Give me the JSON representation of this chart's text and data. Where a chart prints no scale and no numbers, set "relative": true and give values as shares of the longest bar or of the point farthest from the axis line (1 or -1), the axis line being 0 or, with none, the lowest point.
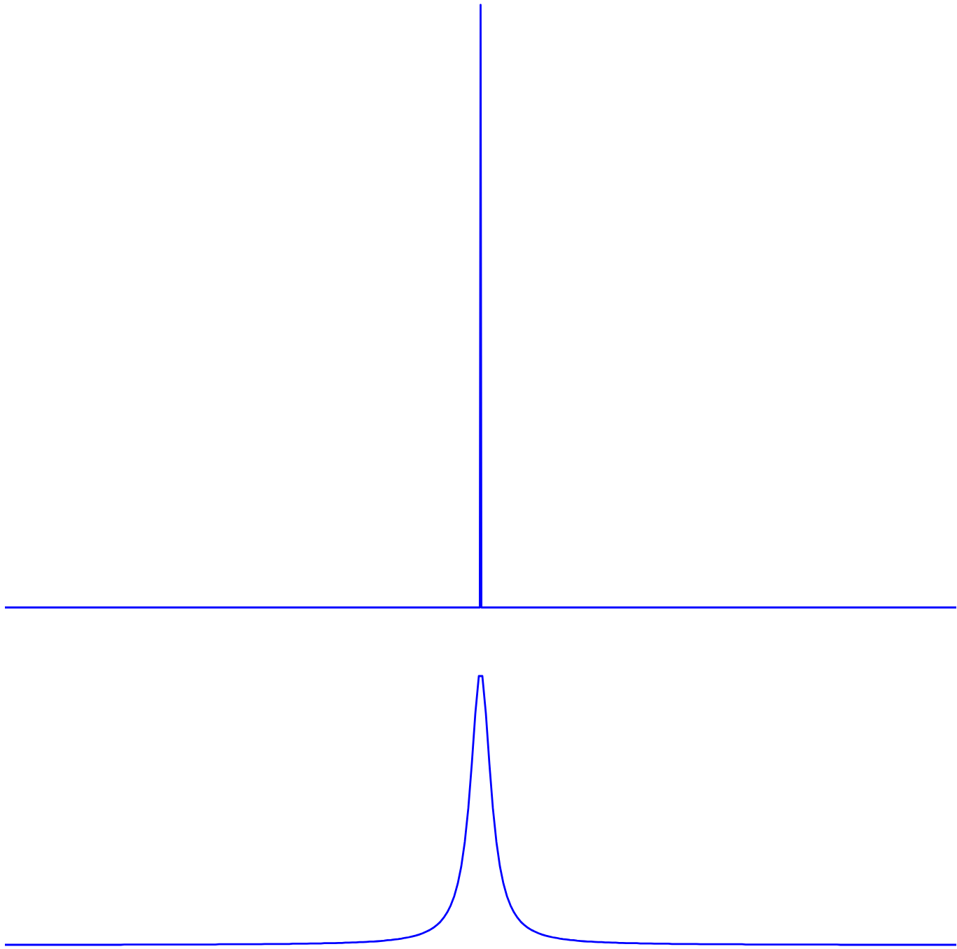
{
  "chart_data": [
    {
      "type": "line",
      "relative": true,
      "color": "#0000ff",
      "categories": [
        null,
        null,
        null,
        null,
        null,
        null,
        null,
        null,
        null,
        null,
        null,
        null,
        null,
        null,
        null,
        null,
        null,
        null,
        null,
        null,
        null,
        null,
        null,
        null,
        null,
        null,
        null,
        null,
        null,
        null,
        null,
        null,
        null,
        null,
        null,
        null,
        null,
        null,
        null,
        null,
        null,
        null,
        null,
        null,
        null,
        null,
        null,
        null,
        null,
        null,
        null,
        null,
        null,
        null,
        null,
        null,
        null,
        null,
        null,
        null,
        null,
        null,
        null,
        null,
        null,
        null,
        null,
        null,
        null,
        null,
        null,
        null,
        null,
        null,
        null,
        null,
        null,
        null,
        null,
        null,
        null,
        null,
        null,
        null,
        null,
        null,
        null,
        null,
        null,
        null,
        null,
        null,
        null,
        null,
        null,
        null,
        null,
        null,
        null,
        null,
        null,
        null,
        null,
        null,
        null,
        null,
        null,
        null,
        null,
        null,
        null,
        null,
        null,
        null,
        null,
        null,
        null,
        null,
        null,
        null,
        null,
        null,
        null,
        null,
        null,
        null,
        null,
        null,
        null,
        null,
        null,
        null,
        null,
        null,
        null,
        null,
        null,
        null,
        null,
        null,
        null,
        null,
        null,
        null,
        null,
        null,
        null,
        null,
        null,
        null,
        null,
        null,
        null,
        null,
        null,
        null,
        null,
        null,
        null,
        null,
        null,
        null,
        null,
        null,
        null,
        null,
        null,
        null,
        null,
        null,
        null,
        null,
        null,
        null,
        null,
        null,
        null,
        null,
        null,
        null,
        null,
        null,
        null,
        null,
        null,
        null,
        null,
        null,
        null,
        null,
        null,
        null,
        null,
        null,
        null,
        null,
        null,
        null,
        null,
        null,
        null,
        null,
        null,
        null,
        null,
        null,
        null,
        null,
        null,
        null,
        null,
        null,
        null,
        null,
        null,
        null,
        null,
        null,
        null,
        null,
        null,
        null,
        null,
        null,
        null,
        null,
        null,
        null,
        null,
        null,
        null,
        null,
        null,
        null,
        null,
        null,
        null,
        null,
        null,
        null,
        null,
        null,
        null,
        null,
        null,
        null,
        null,
        null,
        null,
        null,
        null,
        null,
        null,
        null,
        null,
        null,
        null,
        null,
        null,
        null,
        null,
        null,
        null,
        null,
        null,
        null,
        null,
        null,
        null,
        null,
        null,
        null,
        null,
        null,
        null,
        null,
        null,
        null,
        null,
        null,
        null,
        null,
        null,
        null,
        null,
        null,
        null,
        null,
        null,
        null,
        null,
        null,
        null,
        null,
        null,
        null,
        null,
        null,
        null,
        null,
        null,
        null,
        null,
        null,
        null,
        null,
        null,
        null,
        null,
        null,
        null,
        null,
        null,
        null,
        null,
        null,
        null,
        null,
        null,
        null,
        null,
        null,
        null,
        null,
        null,
        null,
        null,
        null,
        null,
        null,
        null,
        null,
        null,
        null,
        null,
        null,
        null,
        null,
        null,
        null,
        null,
        null,
        null,
        null,
        null,
        null,
        null,
        null,
        null,
        null,
        null,
        null,
        null,
        null,
        null,
        null,
        null,
        null,
        null,
        null,
        null,
        null,
        null,
        null,
        null,
        null,
        null,
        null,
        null,
        null,
        null,
        null,
        null,
        null,
        null,
        null,
        null,
        null,
        null,
        null,
        null,
        null,
        null,
        null,
        null,
        null,
        null,
        null,
        null,
        null,
        null,
        null,
        null,
        null,
        null,
        null,
        null,
        null,
        null,
        null,
        null,
        null,
        null,
        null,
        null,
        null,
        null,
        null,
        null,
        null,
        null,
        null,
        null,
        null,
        null,
        null,
        null,
        null,
        null,
        null,
        null,
        null,
        null,
        null,
        null,
        null,
        null,
        null,
        null,
        null,
        null,
        null,
        null,
        null,
        null,
        null,
        null,
        null,
        null,
        null,
        null,
        null,
        null,
        null,
        null,
        null,
        null,
        null,
        null,
        null,
        null,
        null,
        null,
        null,
        null,
        null,
        null,
        null,
        null,
        null,
        null,
        null,
        null,
        null,
        null,
        null,
        null,
        null,
        null,
        null,
        null,
        null,
        null,
        null,
        null,
        null,
        null,
        null,
        null,
        null,
        null,
        null,
        null,
        null,
        null,
        null,
        null,
        null,
        null,
        null,
        null,
        null,
        null,
        null,
        null,
        null,
        null,
        null,
        null,
        null,
        null,
        null,
        null,
        null,
        null,
        null,
        null,
        null,
        null,
        null,
        null,
        null,
        null,
        null,
        null,
        null,
        null,
        null,
        null,
        null,
        null,
        null,
        null,
        null,
        null,
        null,
        null,
        null,
        null,
        null,
        null,
        null,
        null,
        null,
        null,
        null,
        null,
        null,
        null,
        null,
        null,
        null,
        null,
        null,
        null,
        null,
        null,
        null,
        null,
        null,
        null,
        null,
        null,
        null,
        null,
        null,
        null,
        null,
        null,
        null,
        null,
        null,
        null,
        null,
        null,
        null,
        null,
        null,
        null,
        null,
        null,
        null,
        null,
        null,
        null,
        null,
        null,
        null,
        null,
        null,
        null,
        null,
        null,
        null,
        null,
        null,
        null,
        null,
        null,
        null,
        null,
        null,
        null,
        null,
        null,
        null,
        null,
        null,
        null,
        null,
        null,
        null,
        null,
        null,
        null,
        null,
        null,
        null,
        null,
        null,
        null,
        null,
        null,
        null,
        null,
        null,
        null,
        null,
        null,
        null,
        null,
        null,
        null,
        null,
        null,
        null,
        null,
        null,
        null,
        null,
        null,
        null,
        null,
        null,
        null,
        null,
        null,
        null,
        null,
        null,
        null,
        null,
        null,
        null,
        null,
        null,
        null,
        null,
        null,
        null,
        null,
        null,
        null,
        null,
        null,
        null,
        null,
        null,
        null,
        null,
        null,
        null,
        null,
        null,
        null,
        null,
        null,
        null,
        null,
        null,
        null,
        null,
        null,
        null,
        null,
        null,
        null,
        null,
        null,
        null,
        null,
        null,
        null,
        null,
        null,
        null,
        null,
        null,
        null,
        null,
        null,
        null,
        null,
        null,
        null,
        null,
        null,
        null,
        null,
        null,
        null,
        null,
        null,
        null,
        null,
        null,
        null,
        null,
        null,
        null,
        null,
        null,
        null,
        null,
        null,
        null,
        null,
        null,
        null,
        null,
        null,
        null,
        null,
        null,
        null,
        null,
        null,
        null,
        null,
        null,
        null,
        null,
        null,
        null,
        null,
        null,
        null,
        null,
        null,
        null,
        null,
        null,
        null,
        null,
        null,
        null,
        null,
        null,
        null,
        null,
        null,
        null,
        null,
        null,
        null,
        null,
        null,
        null,
        null,
        null,
        null,
        null,
        null,
        null,
        null,
        null,
        null,
        null,
        null,
        null,
        null,
        null,
        null,
        null,
        null,
        null,
        null,
        null,
        null,
        null,
        null,
        null,
        null,
        null,
        null,
        null,
        null,
        null,
        null,
        null,
        null,
        null,
        null,
        null,
        null,
        null,
        null,
        null,
        null,
        null,
        null,
        null,
        null,
        null,
        null,
        null,
        null,
        null,
        null,
        null,
        null,
        null,
        null,
        null,
        null,
        null,
        null,
        null,
        null,
        null,
        null,
        null,
        null,
        null,
        null,
        null,
        null,
        null,
        null,
        null,
        null,
        null,
        null,
        null,
        null,
        null,
        null,
        null,
        null,
        null,
        null,
        null,
        null,
        null,
        null,
        null,
        null,
        null,
        null,
        null,
        null,
        null,
        null,
        null,
        null,
        null,
        null,
        null,
        null,
        null,
        null,
        null,
        null,
        null,
        null,
        null,
        null,
        null,
        null,
        null,
        null,
        null,
        null,
        null,
        null,
        null,
        null,
        null,
        null,
        null,
        null,
        null,
        null,
        null,
        null,
        null,
        null,
        null,
        null,
        null,
        null,
        null,
        null,
        null,
        null,
        null,
        null,
        null,
        null,
        null,
        null,
        null,
        null,
        null,
        null,
        null,
        null,
        null,
        null,
        null,
        null,
        null,
        null,
        null,
        null,
        null,
        null,
        null,
        null,
        null,
        null,
        null,
        null,
        null,
        null,
        null,
        null,
        null,
        null,
        null,
        null,
        null,
        null,
        null,
        null,
        null,
        null,
        null,
        null,
        null,
        null,
        null,
        null,
        null,
        null,
        null,
        null,
        null,
        null,
        null,
        null,
        null,
        null,
        null,
        null,
        null,
        null,
        null,
        null,
        null,
        null,
        null,
        null,
        null,
        null,
        null,
        null,
        null,
        null,
        null,
        null,
        null,
        null,
        null,
        null,
        null,
        null,
        null,
        null,
        null,
        null,
        null,
        null,
        null,
        null,
        null,
        null,
        null,
        null,
        null,
        null,
        null,
        null,
        null,
        null,
        null,
        null,
        null,
        null,
        null,
        null,
        null,
        null,
        null,
        null,
        null,
        null,
        null,
        null,
        null,
        null,
        null,
        null,
        null,
        null,
        null,
        null,
        null,
        null,
        null,
        null,
        null,
        null,
        null,
        null,
        null,
        null,
        null,
        null,
        null,
        null,
        null,
        null,
        null,
        null,
        null,
        null,
        null,
        null,
        null,
        null,
        null,
        null,
        null,
        null,
        null,
        null,
        null,
        null,
        null,
        null,
        null,
        null,
        null,
        null,
        null,
        null,
        null,
        null,
        null,
        null,
        null,
        null,
        null,
        null,
        null,
        null,
        null,
        null,
        null,
        null,
        null,
        null,
        null,
        null,
        null,
        null,
        null,
        null,
        null,
        null,
        null,
        null,
        null,
        null,
        null,
        null,
        null,
        null,
        null,
        null,
        null,
        null,
        null,
        null,
        null,
        null,
        null,
        null,
        null,
        null,
        null,
        null,
        null,
        null,
        null,
        null,
        null,
        null,
        null,
        null,
        null,
        null,
        null,
        null,
        null,
        null,
        null,
        null,
        null,
        null,
        null,
        null,
        null,
        null,
        null,
        null,
        null,
        null,
        null,
        null,
        null,
        null,
        null,
        null,
        null,
        null,
        null,
        null,
        null,
        null,
        null,
        null,
        null,
        null,
        null,
        null,
        null,
        null,
        null,
        null,
        null,
        null,
        null,
        null,
        null,
        null,
        null,
        null,
        null,
        null,
        null,
        null,
        null,
        null,
        null,
        null,
        null,
        null,
        null,
        null,
        null,
        null,
        null,
        null,
        null,
        null,
        null,
        null,
        null,
        null,
        null,
        null,
        null,
        null,
        null,
        null,
        null,
        null,
        null,
        null,
        null,
        null,
        null,
        null,
        null,
        null,
        null,
        null,
        null,
        null
      ],
      "values": [
        0,
        0,
        0,
        0,
        0,
        0,
        0,
        0,
        0,
        0,
        0,
        0,
        0,
        0,
        0,
        0,
        0,
        0,
        0,
        0,
        0,
        0,
        0,
        0,
        0,
        0,
        0,
        0,
        0,
        0,
        0,
        0,
        0,
        0,
        0,
        0,
        0,
        0,
        0,
        0,
        0,
        0,
        0,
        0,
        0,
        0,
        0,
        0,
        0,
        0,
        0,
        0,
        0,
        0,
        0,
        0,
        0,
        0,
        0,
        0,
        0,
        0,
        0,
        0,
        0,
        0,
        0,
        0,
        0,
        0,
        0,
        0,
        0,
        0,
        0,
        0,
        0,
        0,
        0,
        0,
        0,
        0,
        0,
        0,
        0,
        0,
        0,
        0,
        0,
        0,
        0,
        0,
        0,
        0,
        0,
        0,
        0,
        0,
        0,
        0,
        0,
        0,
        0,
        0,
        0,
        0,
        0,
        0,
        0,
        0,
        0,
        0,
        0,
        0,
        0,
        0,
        0,
        0,
        0,
        0,
        0,
        0,
        0,
        0,
        0,
        0,
        0,
        0,
        0,
        0,
        0,
        0,
        0,
        0,
        0,
        0,
        0,
        0,
        0,
        0,
        0,
        0,
        0,
        0,
        0,
        0,
        0,
        0,
        0,
        0,
        0,
        0,
        0,
        0,
        0,
        0,
        0,
        0,
        0,
        0,
        0,
        0,
        0,
        0,
        0,
        0,
        0,
        0,
        0,
        0,
        0,
        0,
        0,
        0,
        0,
        0,
        0,
        0,
        0,
        0,
        0,
        0,
        0,
        0,
        0,
        0,
        0,
        0,
        0,
        0,
        0,
        0,
        0,
        0,
        0,
        0,
        0,
        0,
        0,
        0,
        0,
        0,
        0,
        0,
        0,
        0,
        0,
        0,
        0,
        0,
        0,
        0,
        0,
        0,
        0,
        0,
        0,
        0,
        0,
        0,
        0,
        0,
        0,
        0,
        0,
        0,
        0,
        0,
        0,
        0,
        0,
        0,
        0,
        0,
        0,
        0,
        0,
        0,
        0,
        0,
        0,
        0,
        0,
        0,
        0,
        0,
        0,
        0,
        0,
        0,
        0,
        0,
        0,
        0,
        0,
        0,
        0,
        0,
        0,
        0,
        0,
        0,
        0,
        0,
        0,
        0,
        0,
        0,
        0,
        0,
        0,
        0,
        0,
        0,
        0,
        0,
        0,
        0,
        0,
        0,
        0,
        0,
        0,
        0,
        0,
        0,
        0,
        0,
        0,
        0,
        0,
        0,
        0,
        0,
        0,
        0,
        0,
        0,
        0,
        0,
        0,
        0,
        0,
        0,
        0,
        0,
        0,
        0,
        0,
        0,
        0,
        0,
        0,
        0,
        0,
        0,
        0,
        0,
        0,
        0,
        0,
        0,
        0,
        0,
        0,
        0,
        0,
        0,
        0,
        0,
        0,
        0,
        0,
        0,
        0,
        0,
        0,
        0,
        0,
        0,
        0,
        0,
        0,
        0,
        0,
        0,
        0,
        0,
        0,
        0,
        0,
        0,
        0,
        0,
        0,
        0,
        0,
        0,
        0,
        0,
        0,
        0,
        0,
        0,
        0,
        0,
        0,
        0,
        0,
        0,
        0,
        0,
        0,
        0,
        0,
        0,
        0,
        0,
        0,
        0,
        0,
        0,
        0,
        0,
        0,
        0,
        0,
        0,
        0,
        0,
        0,
        0,
        0,
        0,
        0,
        0,
        0,
        0,
        0,
        0,
        0,
        0,
        0,
        0,
        0,
        0,
        0,
        0,
        0,
        0,
        0,
        0,
        0,
        0,
        0,
        0,
        0,
        0,
        0,
        0,
        0,
        0,
        0,
        0,
        0,
        0,
        0,
        0,
        0,
        0,
        0,
        0,
        0,
        0,
        0,
        0,
        0,
        0,
        0,
        0,
        0,
        0,
        0,
        0,
        0,
        0,
        0,
        0,
        0,
        0,
        0,
        0,
        0,
        0,
        0,
        0,
        0,
        0,
        0,
        0,
        0,
        0,
        0,
        0,
        0,
        0,
        0,
        0,
        0,
        0,
        0,
        0,
        0,
        0,
        0,
        0,
        0,
        0,
        0,
        0,
        0,
        0,
        0,
        0,
        0,
        0,
        0,
        0,
        0,
        0,
        0,
        0,
        0,
        0,
        0,
        0,
        0,
        0,
        0,
        0,
        0,
        0,
        0,
        0,
        0,
        0,
        0,
        0,
        0,
        0,
        0,
        0,
        0,
        0,
        0,
        0,
        0,
        0,
        0,
        0,
        0,
        0,
        0,
        0,
        0,
        0,
        0,
        0,
        0,
        0,
        0,
        0,
        0,
        0,
        0,
        0,
        0,
        0,
        0,
        0,
        0,
        0,
        0,
        0,
        0,
        0,
        0,
        0,
        0,
        0,
        0,
        0,
        0,
        0,
        0,
        0,
        0,
        0,
        0,
        0,
        0,
        0,
        0,
        0,
        0,
        0,
        0,
        0,
        0,
        0,
        0,
        0,
        0,
        0,
        0,
        0,
        0,
        0,
        0,
        0,
        0,
        0,
        0,
        0,
        0,
        0,
        0,
        0,
        0,
        0,
        0,
        0,
        0,
        0,
        0,
        0,
        0,
        0,
        0,
        0,
        1,
        0,
        0,
        0,
        0,
        0,
        0,
        0,
        0,
        0,
        0,
        0,
        0,
        0,
        0,
        0,
        0,
        0,
        0,
        0,
        0,
        0,
        0,
        0,
        0,
        0,
        0,
        0,
        0,
        0,
        0,
        0,
        0,
        0,
        0,
        0,
        0,
        0,
        0,
        0,
        0,
        0,
        0,
        0,
        0,
        0,
        0,
        0,
        0,
        0,
        0,
        0,
        0,
        0,
        0,
        0,
        0,
        0,
        0,
        0,
        0,
        0,
        0,
        0,
        0,
        0,
        0,
        0,
        0,
        0,
        0,
        0,
        0,
        0,
        0,
        0,
        0,
        0,
        0,
        0,
        0,
        0,
        0,
        0,
        0,
        0,
        0,
        0,
        0,
        0,
        0,
        0,
        0,
        0,
        0,
        0,
        0,
        0,
        0,
        0,
        0,
        0,
        0,
        0,
        0,
        0,
        0,
        0,
        0,
        0,
        0,
        0,
        0,
        0,
        0,
        0,
        0,
        0,
        0,
        0,
        0,
        0,
        0,
        0,
        0,
        0,
        0,
        0,
        0,
        0,
        0,
        0,
        0,
        0,
        0,
        0,
        0,
        0,
        0,
        0,
        0,
        0,
        0,
        0,
        0,
        0,
        0,
        0,
        0,
        0,
        0,
        0,
        0,
        0,
        0,
        0,
        0,
        0,
        0,
        0,
        0,
        0,
        0,
        0,
        0,
        0,
        0,
        0,
        0,
        0,
        0,
        0,
        0,
        0,
        0,
        0,
        0,
        0,
        0,
        0,
        0,
        0,
        0,
        0,
        0,
        0,
        0,
        0,
        0,
        0,
        0,
        0,
        0,
        0,
        0,
        0,
        0,
        0,
        0,
        0,
        0,
        0,
        0,
        0,
        0,
        0,
        0,
        0,
        0,
        0,
        0,
        0,
        0,
        0,
        0,
        0,
        0,
        0,
        0,
        0,
        0,
        0,
        0,
        0,
        0,
        0,
        0,
        0,
        0,
        0,
        0,
        0,
        0,
        0,
        0,
        0,
        0,
        0,
        0,
        0,
        0,
        0,
        0,
        0,
        0,
        0,
        0,
        0,
        0,
        0,
        0,
        0,
        0,
        0,
        0,
        0,
        0,
        0,
        0,
        0,
        0,
        0,
        0,
        0,
        0,
        0,
        0,
        0,
        0,
        0,
        0,
        0,
        0,
        0,
        0,
        0,
        0,
        0,
        0,
        0,
        0,
        0,
        0,
        0,
        0,
        0,
        0,
        0,
        0,
        0,
        0,
        0,
        0,
        0,
        0,
        0,
        0,
        0,
        0,
        0,
        0,
        0,
        0,
        0,
        0,
        0,
        0,
        0,
        0,
        0,
        0,
        0,
        0,
        0,
        0,
        0,
        0,
        0,
        0,
        0,
        0,
        0,
        0,
        0,
        0,
        0,
        0,
        0,
        0,
        0,
        0,
        0,
        0,
        0,
        0,
        0,
        0,
        0,
        0,
        0,
        0,
        0,
        0,
        0,
        0,
        0,
        0,
        0,
        0,
        0,
        0,
        0,
        0,
        0,
        0,
        0,
        0,
        0,
        0,
        0,
        0,
        0,
        0,
        0,
        0,
        0,
        0,
        0,
        0,
        0,
        0,
        0,
        0,
        0,
        0,
        0,
        0,
        0,
        0,
        0,
        0,
        0,
        0,
        0,
        0,
        0,
        0,
        0,
        0,
        0,
        0,
        0,
        0,
        0,
        0,
        0,
        0,
        0,
        0,
        0,
        0,
        0,
        0,
        0,
        0,
        0,
        0,
        0,
        0,
        0,
        0,
        0,
        0,
        0,
        0,
        0,
        0,
        0,
        0,
        0,
        0,
        0,
        0,
        0,
        0,
        0,
        0,
        0,
        0,
        0,
        0,
        0,
        0,
        0,
        0,
        0,
        0,
        0,
        0,
        0,
        0,
        0,
        0,
        0,
        0,
        0,
        0,
        0,
        0,
        0,
        0,
        0,
        0,
        0,
        0,
        0,
        0,
        0,
        0,
        0,
        0,
        0,
        0,
        0,
        0,
        0,
        0,
        0,
        0,
        0,
        0,
        0,
        0,
        0,
        0,
        0,
        0,
        0,
        0,
        0,
        0,
        0,
        0,
        0,
        0,
        0,
        0,
        0,
        0,
        0,
        0,
        0,
        0,
        0,
        0,
        0,
        0,
        0,
        0,
        0,
        0,
        0,
        0,
        0,
        0,
        0,
        0,
        0,
        0,
        0,
        0,
        0,
        0,
        0,
        0,
        0,
        0,
        0,
        0,
        0,
        0,
        0,
        0,
        0,
        0,
        0,
        0,
        0,
        0,
        0,
        0,
        0,
        0,
        0,
        0,
        0,
        0,
        0,
        0,
        0,
        0,
        0,
        0,
        0,
        0,
        0,
        0,
        0,
        0,
        0,
        0,
        0,
        0,
        0,
        0,
        0,
        0,
        0,
        0,
        0,
        0,
        0,
        0,
        0,
        0,
        0,
        0,
        0,
        0,
        0,
        0,
        0,
        0,
        0,
        0,
        0,
        0,
        0,
        0,
        0,
        0,
        0,
        0,
        0,
        0,
        0,
        0,
        0,
        0,
        0,
        0,
        0,
        0,
        0,
        0,
        0,
        0,
        0,
        0,
        0,
        0
      ]
    },
    {
      "type": "line",
      "relative": true,
      "color": "#0000ff",
      "categories": [
        null,
        null,
        null,
        null,
        null,
        null,
        null,
        null,
        null,
        null,
        null,
        null,
        null,
        null,
        null,
        null,
        null,
        null,
        null,
        null,
        null,
        null,
        null,
        null,
        null,
        null,
        null,
        null,
        null,
        null,
        null,
        null,
        null,
        null,
        null,
        null,
        null,
        null,
        null,
        null,
        null,
        null,
        null,
        null,
        null,
        null,
        null,
        null,
        null,
        null,
        null,
        null,
        null,
        null,
        null,
        null,
        null,
        null,
        null,
        null,
        null,
        null,
        null,
        null,
        null,
        null,
        null,
        null,
        null,
        null,
        null,
        null,
        null,
        null,
        null,
        null,
        null,
        null,
        null,
        null,
        null,
        null,
        null,
        null,
        null,
        null,
        null,
        null,
        null,
        null,
        null,
        null,
        null,
        null,
        null,
        null,
        null,
        null,
        null,
        null,
        null,
        null,
        null,
        null,
        null,
        null,
        null,
        null,
        null,
        null,
        null,
        null,
        null,
        null,
        null,
        null,
        null,
        null,
        null,
        null,
        null,
        null,
        null,
        null,
        null,
        null,
        null,
        null,
        null,
        null,
        null,
        null,
        null,
        null,
        null,
        null,
        null,
        null,
        null,
        null,
        null,
        null,
        null,
        null,
        null,
        null,
        null,
        null,
        null,
        null,
        null,
        null,
        null,
        null,
        null,
        null,
        null,
        null,
        null,
        null,
        null,
        null,
        null,
        null,
        null,
        null,
        null,
        null,
        null,
        null,
        null,
        null,
        null,
        null,
        null,
        null,
        null,
        null,
        null,
        null,
        null,
        null,
        null,
        null,
        null,
        null,
        null,
        null,
        null,
        null,
        null,
        null,
        null,
        null,
        null,
        null,
        null,
        null,
        null,
        null,
        null,
        null,
        null,
        null,
        null,
        null,
        null,
        null,
        null,
        null,
        null,
        null,
        null,
        null,
        null,
        null,
        null,
        null,
        null,
        null,
        null,
        null,
        null,
        null,
        null,
        null,
        null,
        null,
        null,
        null,
        null,
        null,
        null,
        null,
        null,
        null,
        null,
        null,
        null,
        null,
        null,
        null,
        null,
        null,
        null,
        null,
        null,
        null,
        null,
        null,
        null,
        null,
        null,
        null,
        null,
        null,
        null,
        null,
        null,
        null,
        null,
        null,
        null,
        null,
        null,
        null,
        null,
        null,
        null,
        null,
        null,
        null
      ],
      "values": [
        0,
        0,
        0,
        0,
        0,
        0,
        0,
        0,
        0,
        0,
        0,
        0,
        0,
        0,
        0,
        0,
        0,
        0,
        0,
        0,
        0,
        0,
        0,
        0,
        0,
        0,
        0,
        0,
        0,
        0,
        0,
        0,
        0,
        0,
        0.001,
        0.001,
        0.001,
        0.001,
        0.001,
        0.001,
        0.001,
        0.001,
        0.001,
        0.001,
        0.001,
        0.001,
        0.001,
        0.001,
        0.001,
        0.001,
        0.001,
        0.001,
        0.001,
        0.001,
        0.001,
        0.001,
        0.001,
        0.001,
        0.001,
        0.001,
        0.001,
        0.002,
        0.002,
        0.002,
        0.002,
        0.002,
        0.002,
        0.002,
        0.002,
        0.002,
        0.002,
        0.002,
        0.002,
        0.002,
        0.003,
        0.003,
        0.003,
        0.003,
        0.003,
        0.003,
        0.003,
        0.003,
        0.004,
        0.004,
        0.004,
        0.004,
        0.004,
        0.005,
        0.005,
        0.005,
        0.005,
        0.006,
        0.006,
        0.006,
        0.006,
        0.007,
        0.007,
        0.008,
        0.008,
        0.009,
        0.009,
        0.01,
        0.01,
        0.011,
        0.012,
        0.012,
        0.013,
        0.014,
        0.015,
        0.017,
        0.018,
        0.02,
        0.021,
        0.023,
        0.026,
        0.028,
        0.031,
        0.034,
        0.038,
        0.043,
        0.049,
        0.055,
        0.063,
        0.073,
        0.085,
        0.101,
        0.121,
        0.147,
        0.181,
        0.228,
        0.292,
        0.383,
        0.508,
        0.674,
        0.861,
        1,
        1,
        0.861,
        0.674,
        0.508,
        0.383,
        0.292,
        0.228,
        0.181,
        0.147,
        0.121,
        0.101,
        0.085,
        0.073,
        0.063,
        0.055,
        0.049,
        0.043,
        0.038,
        0.034,
        0.031,
        0.028,
        0.026,
        0.023,
        0.021,
        0.02,
        0.018,
        0.017,
        0.015,
        0.014,
        0.013,
        0.012,
        0.012,
        0.011,
        0.01,
        0.01,
        0.009,
        0.009,
        0.008,
        0.008,
        0.007,
        0.007,
        0.006,
        0.006,
        0.006,
        0.006,
        0.005,
        0.005,
        0.005,
        0.005,
        0.004,
        0.004,
        0.004,
        0.004,
        0.004,
        0.003,
        0.003,
        0.003,
        0.003,
        0.003,
        0.003,
        0.003,
        0.003,
        0.002,
        0.002,
        0.002,
        0.002,
        0.002,
        0.002,
        0.002,
        0.002,
        0.002,
        0.002,
        0.002,
        0.002,
        0.002,
        0.001,
        0.001,
        0.001,
        0.001,
        0.001,
        0.001,
        0.001,
        0.001,
        0.001,
        0.001,
        0.001,
        0.001,
        0.001,
        0.001,
        0.001,
        0.001,
        0.001,
        0.001,
        0.001,
        0.001,
        0.001,
        0.001,
        0.001,
        0.001,
        0.001,
        0.001,
        0.001,
        0,
        0,
        0,
        0,
        0,
        0,
        0,
        0,
        0,
        0,
        0,
        0,
        0,
        0,
        0,
        0,
        0,
        0,
        0,
        0,
        0,
        0,
        0,
        0,
        0,
        0,
        0,
        0,
        0,
        0,
        0,
        0,
        0,
        0
      ]
    }
  ]
}
